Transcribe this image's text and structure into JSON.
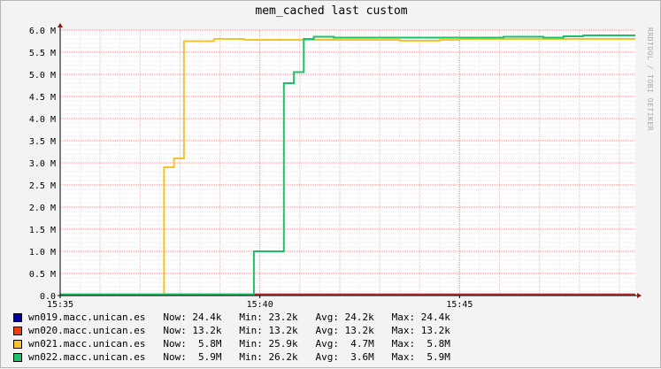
{
  "watermark": "RRDTOOL / TOBI OETIKER",
  "chart_data": {
    "type": "line",
    "title": "mem_cached last custom",
    "xlabel": "",
    "ylabel": "",
    "x_ticks": [
      "15:35",
      "15:40",
      "15:45"
    ],
    "x_tick_minutes": [
      0,
      5,
      10
    ],
    "xlim_minutes": [
      0,
      14.4
    ],
    "y_ticks": [
      "0.0",
      "0.5 M",
      "1.0 M",
      "1.5 M",
      "2.0 M",
      "2.5 M",
      "3.0 M",
      "3.5 M",
      "4.0 M",
      "4.5 M",
      "5.0 M",
      "5.5 M",
      "6.0 M"
    ],
    "ylim": [
      0,
      6000000
    ],
    "grid": true,
    "legend_position": "bottom",
    "series": [
      {
        "name": "wn019.macc.unican.es",
        "color": "#0000a0",
        "stats": {
          "now": "24.4k",
          "min": "23.2k",
          "avg": "24.2k",
          "max": "24.4k"
        },
        "points": [
          [
            0,
            24200
          ],
          [
            14.4,
            24400
          ]
        ]
      },
      {
        "name": "wn020.macc.unican.es",
        "color": "#e84010",
        "stats": {
          "now": "13.2k",
          "min": "13.2k",
          "avg": "13.2k",
          "max": "13.2k"
        },
        "points": [
          [
            4.85,
            13200
          ],
          [
            14.4,
            13200
          ]
        ]
      },
      {
        "name": "wn021.macc.unican.es",
        "color": "#f2c52d",
        "stats": {
          "now": "5.8M",
          "min": "25.9k",
          "avg": "4.7M",
          "max": "5.8M"
        },
        "points": [
          [
            0,
            25900
          ],
          [
            2.6,
            25900
          ],
          [
            2.6,
            2900000
          ],
          [
            2.85,
            2900000
          ],
          [
            2.85,
            3100000
          ],
          [
            3.1,
            3100000
          ],
          [
            3.1,
            5750000
          ],
          [
            3.85,
            5750000
          ],
          [
            3.85,
            5800000
          ],
          [
            4.6,
            5800000
          ],
          [
            4.6,
            5780000
          ],
          [
            8.5,
            5780000
          ],
          [
            8.5,
            5760000
          ],
          [
            9.5,
            5760000
          ],
          [
            9.5,
            5780000
          ],
          [
            10.0,
            5780000
          ],
          [
            10.0,
            5800000
          ],
          [
            14.4,
            5800000
          ]
        ]
      },
      {
        "name": "wn022.macc.unican.es",
        "color": "#1bc26a",
        "stats": {
          "now": "5.9M",
          "min": "26.2k",
          "avg": "3.6M",
          "max": "5.9M"
        },
        "points": [
          [
            0,
            26200
          ],
          [
            4.85,
            26200
          ],
          [
            4.85,
            1000000
          ],
          [
            5.6,
            1000000
          ],
          [
            5.6,
            4800000
          ],
          [
            5.85,
            4800000
          ],
          [
            5.85,
            5050000
          ],
          [
            6.1,
            5050000
          ],
          [
            6.1,
            5800000
          ],
          [
            6.35,
            5800000
          ],
          [
            6.35,
            5850000
          ],
          [
            6.85,
            5850000
          ],
          [
            6.85,
            5830000
          ],
          [
            11.1,
            5830000
          ],
          [
            11.1,
            5850000
          ],
          [
            12.1,
            5850000
          ],
          [
            12.1,
            5830000
          ],
          [
            12.6,
            5830000
          ],
          [
            12.6,
            5860000
          ],
          [
            13.1,
            5860000
          ],
          [
            13.1,
            5880000
          ],
          [
            14.4,
            5880000
          ]
        ]
      }
    ]
  }
}
